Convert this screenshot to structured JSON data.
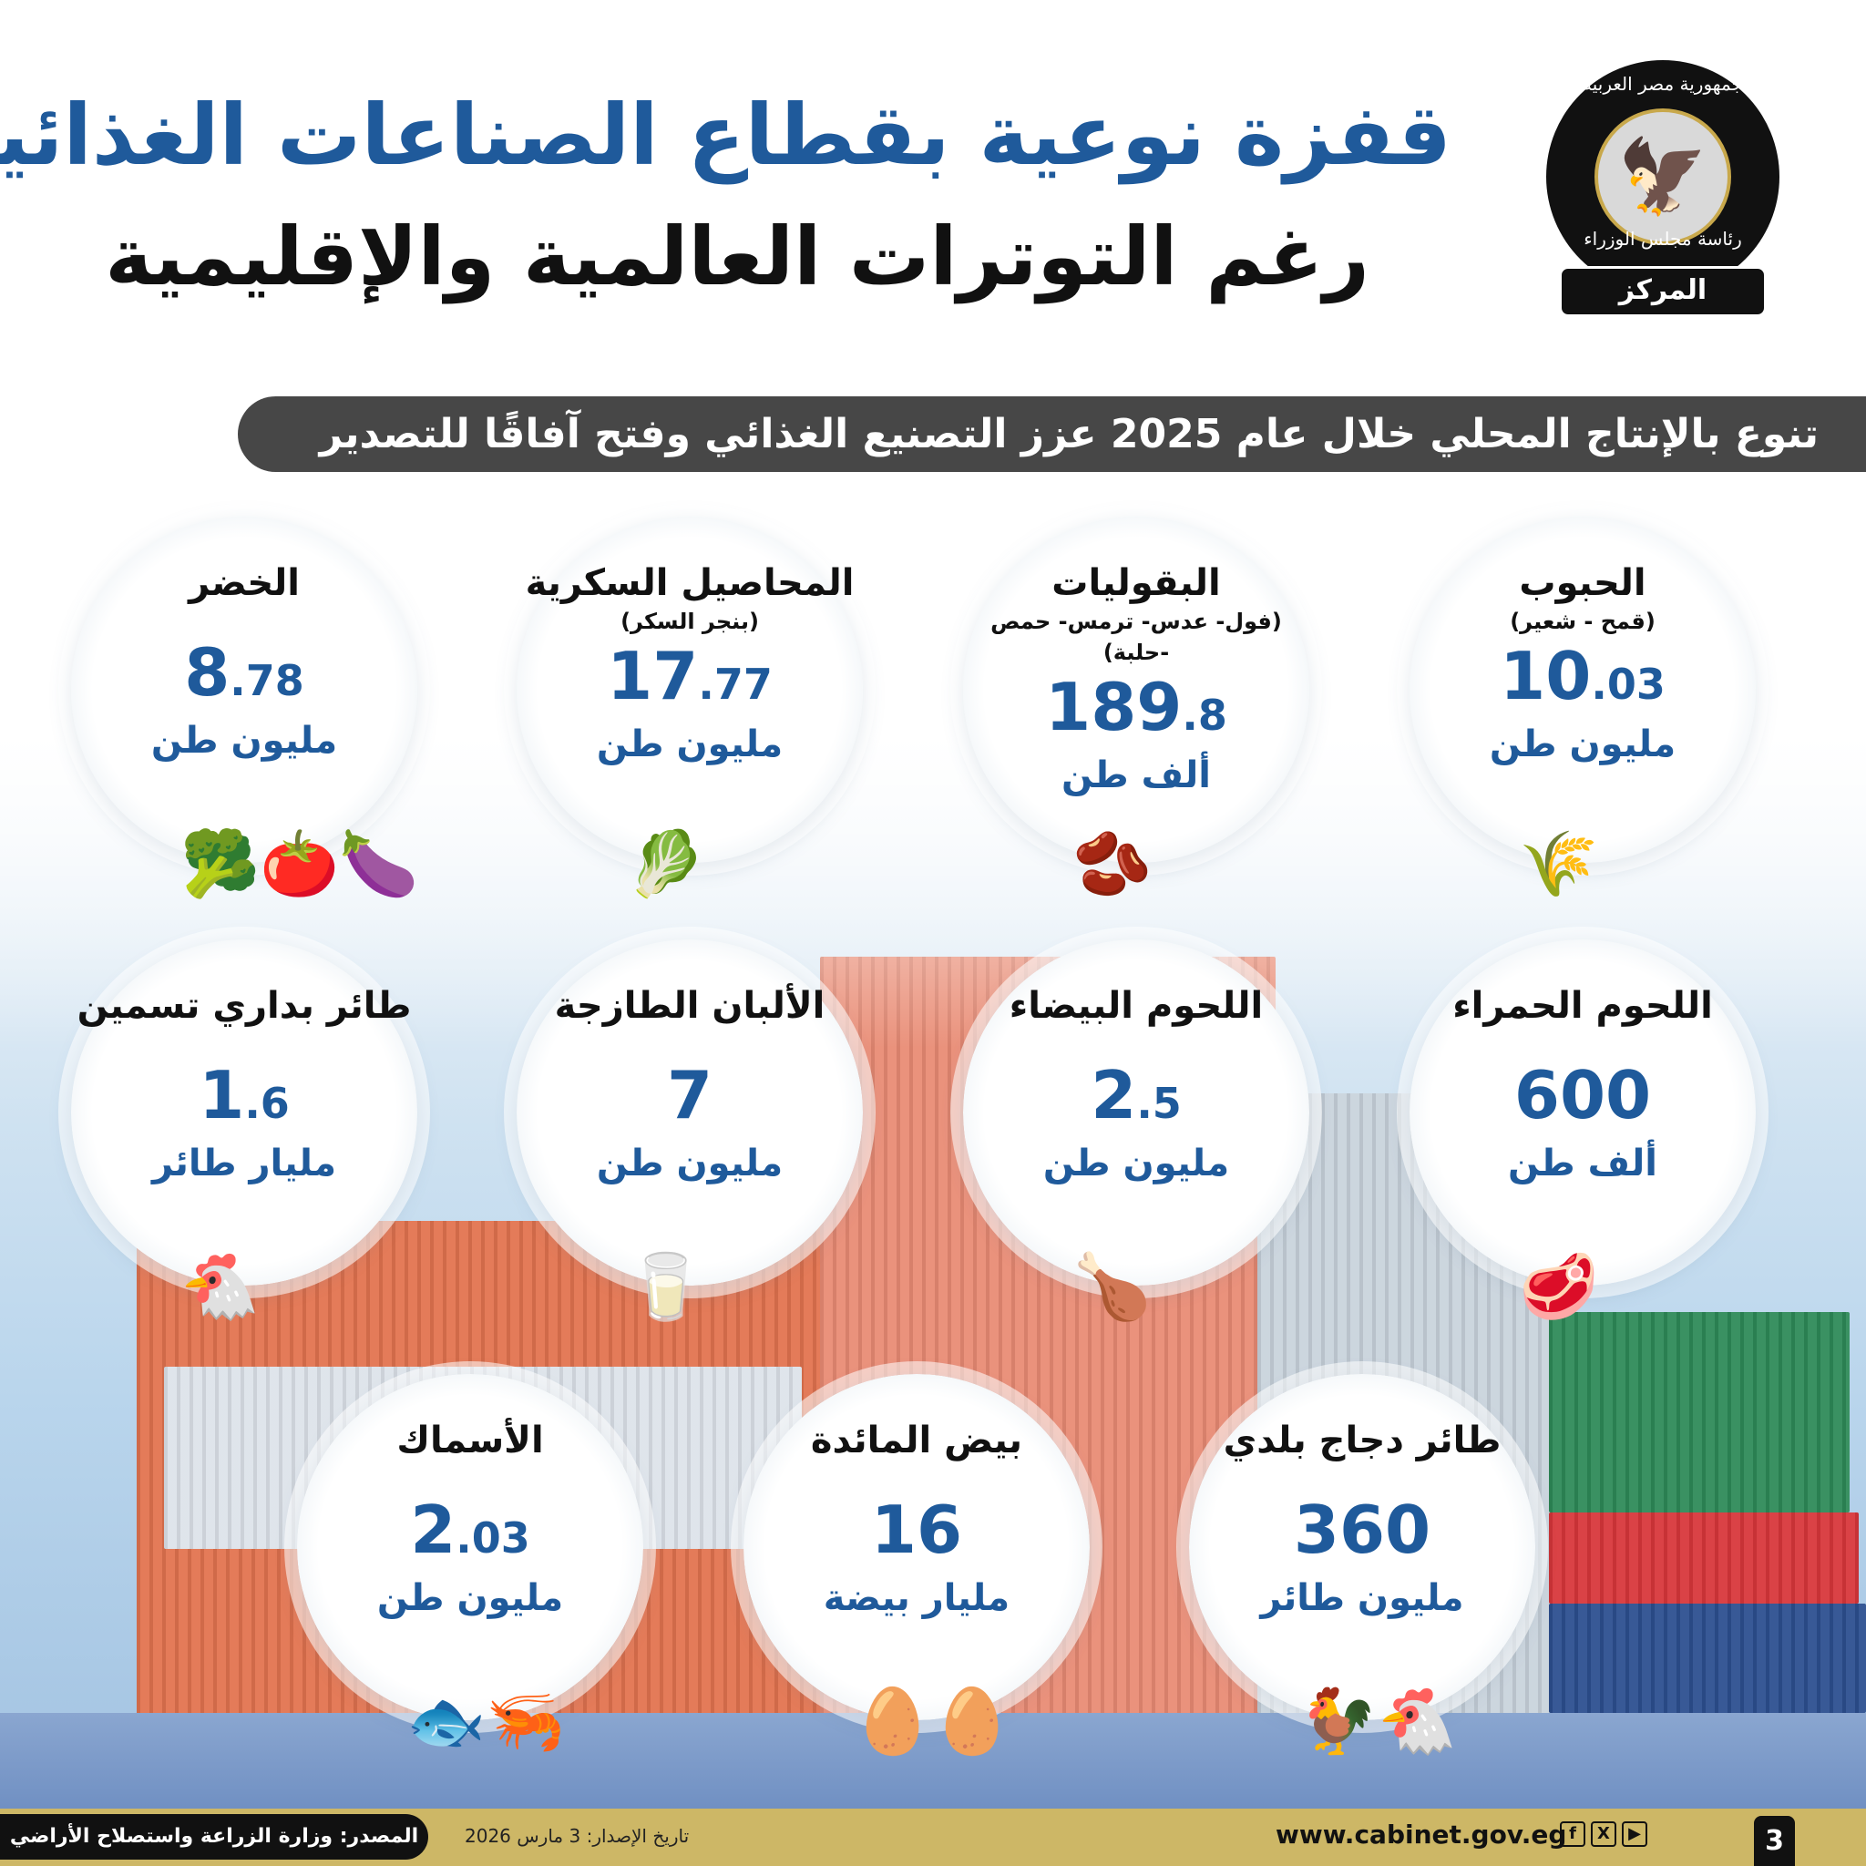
{
  "header": {
    "title_line1": "قفزة نوعية بقطاع الصناعات الغذائية",
    "title_line2": "رغم التوترات العالمية والإقليمية"
  },
  "logo": {
    "top_text": "جمهورية مصر العربية",
    "bottom_text": "رئاسة مجلس الوزراء",
    "ribbon": "المركز الإعلامي"
  },
  "banner": "تنوع بالإنتاج المحلي خلال عام 2025 عزز التصنيع الغذائي وفتح آفاقًا للتصدير",
  "items": [
    {
      "label": "الحبوب",
      "sub": "(قمح - شعير)",
      "int": "10",
      "dec": ".03",
      "unit": "مليون طن",
      "icon": "wheat-icon"
    },
    {
      "label": "البقوليات",
      "sub": "(فول- عدس- ترمس- حمص -حلبة)",
      "int": "189",
      "dec": ".8",
      "unit": "ألف طن",
      "icon": "legumes-icon"
    },
    {
      "label": "المحاصيل السكرية",
      "sub": "(بنجر السكر)",
      "int": "17",
      "dec": ".77",
      "unit": "مليون طن",
      "icon": "sugar-beet-icon"
    },
    {
      "label": "الخضر",
      "sub": "",
      "int": "8",
      "dec": ".78",
      "unit": "مليون طن",
      "icon": "vegetables-icon"
    },
    {
      "label": "اللحوم الحمراء",
      "sub": "",
      "int": "600",
      "dec": "",
      "unit": "ألف طن",
      "icon": "red-meat-icon"
    },
    {
      "label": "اللحوم البيضاء",
      "sub": "",
      "int": "2",
      "dec": ".5",
      "unit": "مليون طن",
      "icon": "chicken-meat-icon"
    },
    {
      "label": "الألبان الطازجة",
      "sub": "",
      "int": "7",
      "dec": "",
      "unit": "مليون طن",
      "icon": "milk-icon"
    },
    {
      "label": "طائر بداري تسمين",
      "sub": "",
      "int": "1",
      "dec": ".6",
      "unit": "مليار طائر",
      "icon": "broiler-icon"
    },
    {
      "label": "طائر دجاج بلدي",
      "sub": "",
      "int": "360",
      "dec": "",
      "unit": "مليون طائر",
      "icon": "hens-icon"
    },
    {
      "label": "بيض المائدة",
      "sub": "",
      "int": "16",
      "dec": "",
      "unit": "مليار بيضة",
      "icon": "eggs-icon"
    },
    {
      "label": "الأسماك",
      "sub": "",
      "int": "2",
      "dec": ".03",
      "unit": "مليون طن",
      "icon": "fish-icon"
    }
  ],
  "footer": {
    "source": "المصدر: وزارة الزراعة واستصلاح الأراضي",
    "date": "تاريخ الإصدار: 3 مارس 2026",
    "url": "www.cabinet.gov.eg",
    "page": "3",
    "social": [
      "facebook-icon",
      "x-icon",
      "youtube-icon"
    ]
  },
  "colors": {
    "title_blue": "#1f5a9b",
    "banner": "#474747",
    "footer": "#cdb766"
  }
}
